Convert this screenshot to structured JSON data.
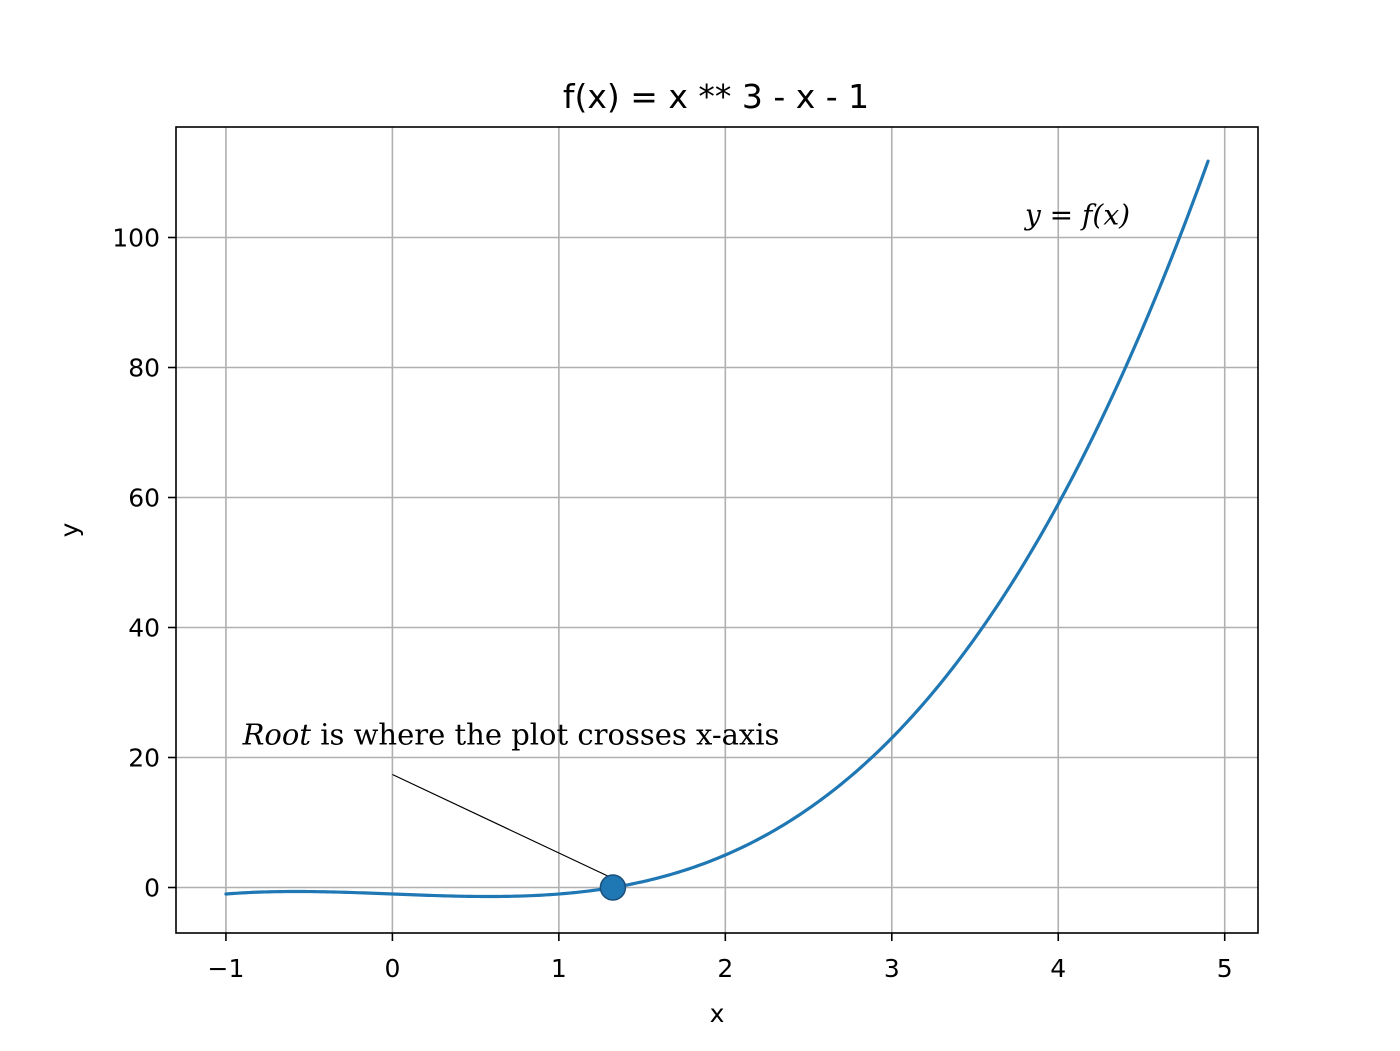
{
  "chart_data": {
    "type": "line",
    "title": "f(x) = x ** 3 - x - 1",
    "xlabel": "x",
    "ylabel": "y",
    "xlim": [
      -1.3,
      5.2
    ],
    "ylim": [
      -7,
      117
    ],
    "grid": true,
    "x_ticks": [
      -1,
      0,
      1,
      2,
      3,
      4,
      5
    ],
    "x_tick_labels": [
      "−1",
      "0",
      "1",
      "2",
      "3",
      "4",
      "5"
    ],
    "y_ticks": [
      0,
      20,
      40,
      60,
      80,
      100
    ],
    "y_tick_labels": [
      "0",
      "20",
      "40",
      "60",
      "80",
      "100"
    ],
    "series": [
      {
        "function": "x^3 - x - 1",
        "x_range": [
          -1,
          4.9
        ],
        "color": "#1f77b4"
      }
    ],
    "root_point": {
      "x": 1.3247,
      "y": 0,
      "color": "#1f77b4"
    },
    "annotations": {
      "root_italic": "Root",
      "root_rest": " is where the plot crosses x-axis",
      "root_text_anchor": {
        "x": -0.9,
        "y": 22
      },
      "curve_label": "y = f(x)",
      "curve_label_anchor": {
        "x": 3.8,
        "y": 102
      }
    }
  }
}
